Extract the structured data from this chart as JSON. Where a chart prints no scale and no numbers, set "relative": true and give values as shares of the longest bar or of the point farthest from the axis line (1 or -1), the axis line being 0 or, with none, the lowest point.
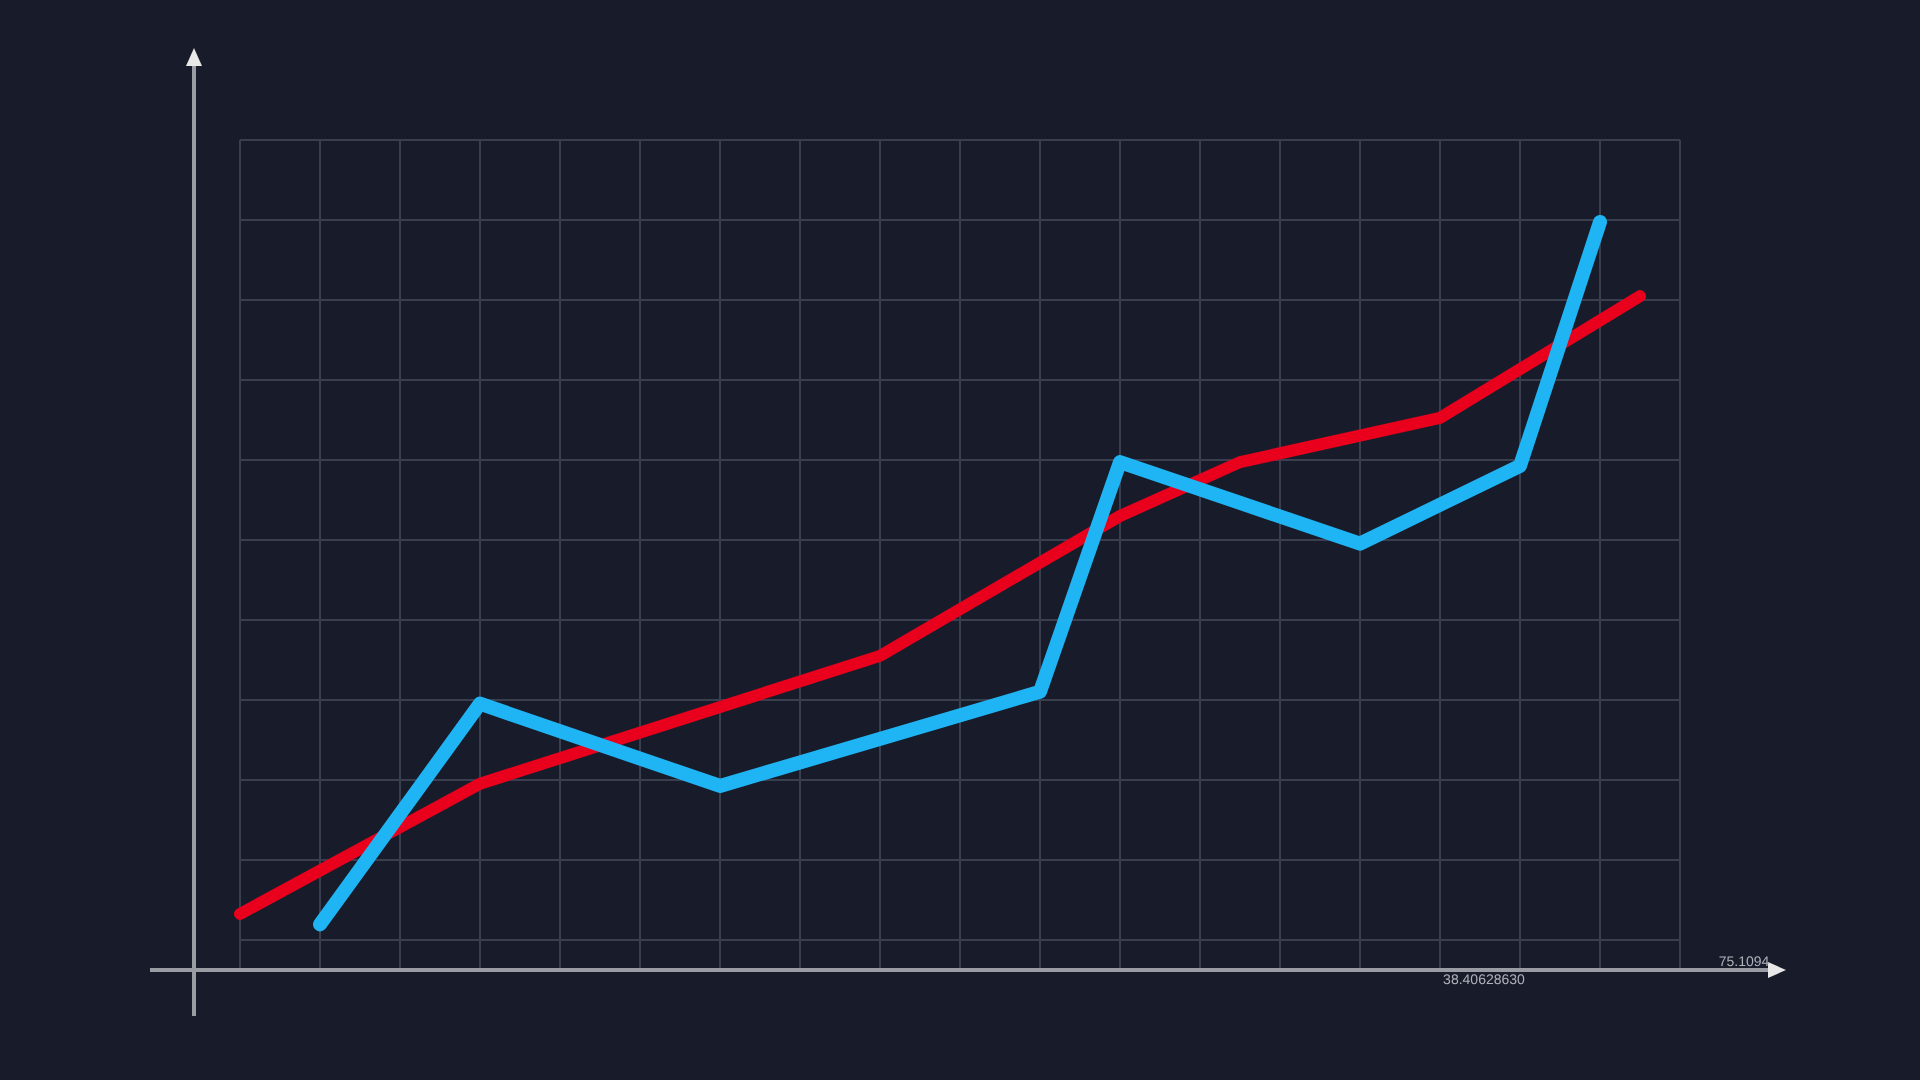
{
  "chart_data": {
    "type": "line",
    "relative": true,
    "grid": true,
    "categories": [
      null,
      null,
      null,
      null,
      null,
      null,
      null,
      null,
      null,
      null,
      null,
      null,
      null,
      null,
      null,
      null,
      null,
      null,
      null,
      null,
      null,
      null,
      null,
      null,
      null,
      null,
      null,
      null,
      null,
      null,
      null,
      null,
      null,
      null,
      null,
      null,
      null
    ],
    "series": [
      {
        "color": "#e8001c",
        "values": [
          0.075,
          null,
          null,
          null,
          null,
          null,
          0.249,
          null,
          null,
          null,
          null,
          null,
          null,
          null,
          null,
          null,
          0.42,
          null,
          null,
          null,
          null,
          null,
          0.607,
          null,
          null,
          0.679,
          null,
          null,
          null,
          null,
          0.738,
          null,
          null,
          null,
          null,
          0.901,
          null
        ]
      },
      {
        "color": "#1fb5f5",
        "values": [
          null,
          null,
          0.061,
          null,
          null,
          null,
          0.356,
          null,
          null,
          null,
          null,
          null,
          0.246,
          null,
          null,
          null,
          null,
          null,
          null,
          null,
          0.372,
          null,
          0.679,
          null,
          null,
          null,
          null,
          null,
          0.57,
          null,
          null,
          null,
          0.674,
          null,
          1,
          null,
          null
        ]
      }
    ],
    "annotations": [
      "38.40628630",
      "75.1094"
    ]
  }
}
